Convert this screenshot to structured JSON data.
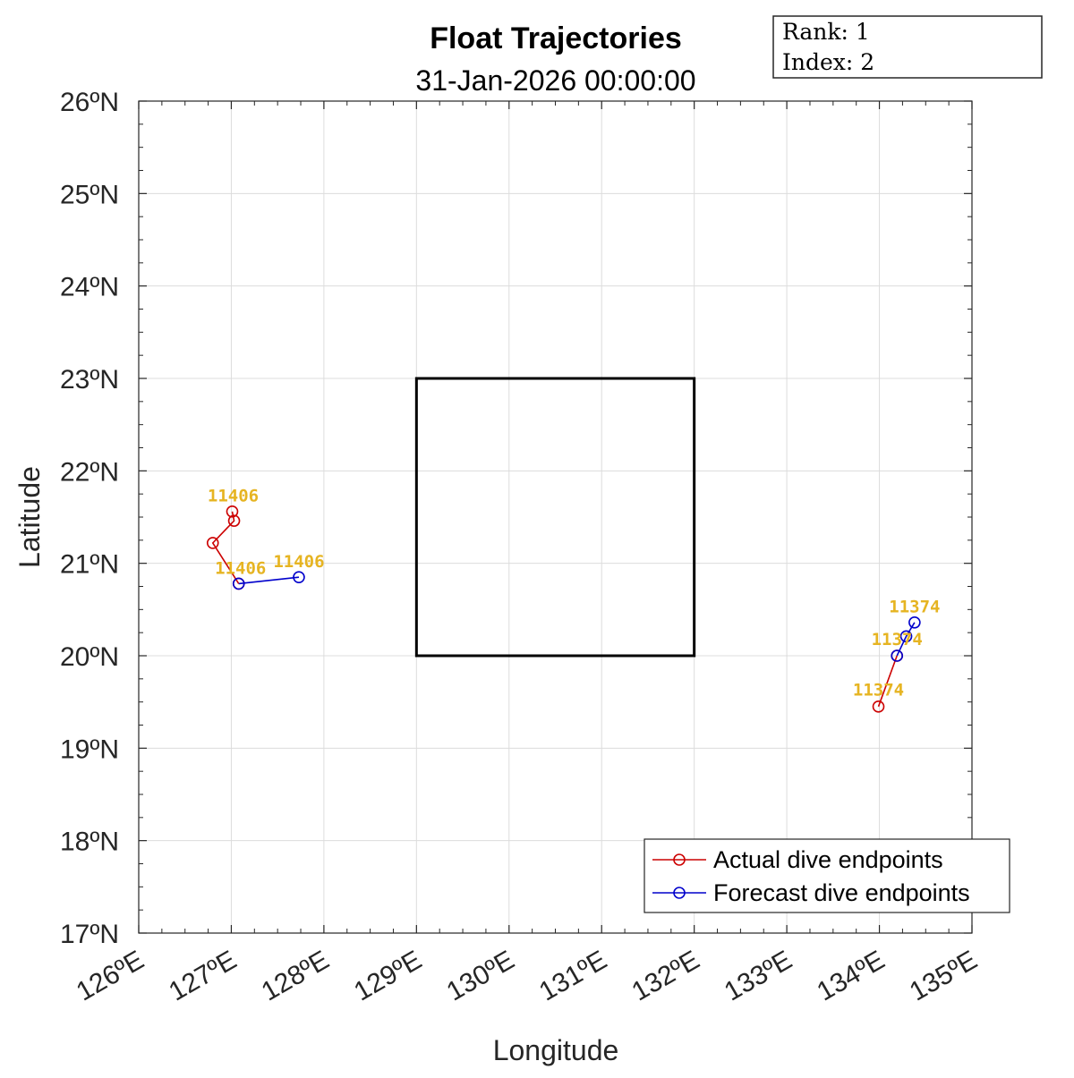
{
  "chart_data": {
    "type": "line",
    "title": "Float Trajectories",
    "subtitle": "31-Jan-2026 00:00:00",
    "xlabel": "Longitude",
    "ylabel": "Latitude",
    "xlim": [
      126,
      135
    ],
    "ylim": [
      17,
      26
    ],
    "x_ticks": [
      126,
      127,
      128,
      129,
      130,
      131,
      132,
      133,
      134,
      135
    ],
    "y_ticks": [
      17,
      18,
      19,
      20,
      21,
      22,
      23,
      24,
      25,
      26
    ],
    "x_tick_labels": [
      "126ºE",
      "127ºE",
      "128ºE",
      "129ºE",
      "130ºE",
      "131ºE",
      "132ºE",
      "133ºE",
      "134ºE",
      "135ºE"
    ],
    "y_tick_labels": [
      "17ºN",
      "18ºN",
      "19ºN",
      "20ºN",
      "21ºN",
      "22ºN",
      "23ºN",
      "24ºN",
      "25ºN",
      "26ºN"
    ],
    "grid": true,
    "legend_position": "bottom-right",
    "info_box": {
      "rank": "Rank:  1",
      "index": "Index:  2"
    },
    "target_region": {
      "lon": [
        129,
        132
      ],
      "lat": [
        20,
        23
      ],
      "color": "#000000"
    },
    "series": [
      {
        "name": "Actual dive endpoints",
        "color": "#cc0000",
        "tracks": [
          {
            "lon": [
              127.01,
              127.03,
              126.8,
              127.08
            ],
            "lat": [
              21.56,
              21.46,
              21.22,
              20.78
            ]
          },
          {
            "lon": [
              133.99,
              134.19
            ],
            "lat": [
              19.45,
              20.0
            ]
          }
        ]
      },
      {
        "name": "Forecast dive endpoints",
        "color": "#0000cc",
        "tracks": [
          {
            "lon": [
              127.08,
              127.73
            ],
            "lat": [
              20.78,
              20.85
            ]
          },
          {
            "lon": [
              134.19,
              134.29,
              134.38
            ],
            "lat": [
              20.0,
              20.21,
              20.36
            ]
          }
        ]
      }
    ],
    "float_labels": {
      "color": "#e6b422",
      "items": [
        {
          "text": "11406",
          "lon": 127.02,
          "lat": 21.6
        },
        {
          "text": "11406",
          "lon": 127.1,
          "lat": 20.82
        },
        {
          "text": "11406",
          "lon": 127.73,
          "lat": 20.89
        },
        {
          "text": "11374",
          "lon": 134.38,
          "lat": 20.4
        },
        {
          "text": "11374",
          "lon": 134.19,
          "lat": 20.05
        },
        {
          "text": "11374",
          "lon": 133.99,
          "lat": 19.5
        }
      ]
    }
  }
}
